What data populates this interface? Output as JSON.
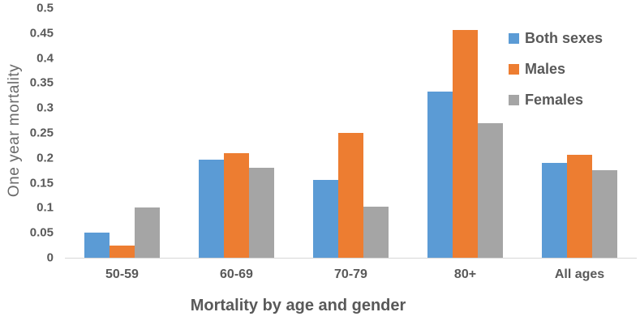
{
  "chart_data": {
    "type": "bar",
    "title": "",
    "xlabel": "Mortality by age and gender",
    "ylabel": "One year mortality",
    "categories": [
      "50-59",
      "60-69",
      "70-79",
      "80+",
      "All ages"
    ],
    "series": [
      {
        "name": "Both sexes",
        "color": "#5B9BD5",
        "values": [
          0.05,
          0.197,
          0.156,
          0.333,
          0.19
        ]
      },
      {
        "name": "Males",
        "color": "#ED7D31",
        "values": [
          0.025,
          0.21,
          0.25,
          0.457,
          0.207
        ]
      },
      {
        "name": "Females",
        "color": "#A5A5A5",
        "values": [
          0.1,
          0.18,
          0.103,
          0.27,
          0.175
        ]
      }
    ],
    "ylim": [
      0,
      0.5
    ],
    "yticks": [
      {
        "value": 0,
        "label": "0"
      },
      {
        "value": 0.05,
        "label": "0.05"
      },
      {
        "value": 0.1,
        "label": "0.1"
      },
      {
        "value": 0.15,
        "label": "0.15"
      },
      {
        "value": 0.2,
        "label": "0.2"
      },
      {
        "value": 0.25,
        "label": "0.25"
      },
      {
        "value": 0.3,
        "label": "0.3"
      },
      {
        "value": 0.35,
        "label": "0.35"
      },
      {
        "value": 0.4,
        "label": "0.4"
      },
      {
        "value": 0.45,
        "label": "0.45"
      },
      {
        "value": 0.5,
        "label": "0.5"
      }
    ],
    "grid": false,
    "legend_position": "top-right",
    "axis_line_color": "#d6d6d6",
    "text_color": "#595959"
  }
}
